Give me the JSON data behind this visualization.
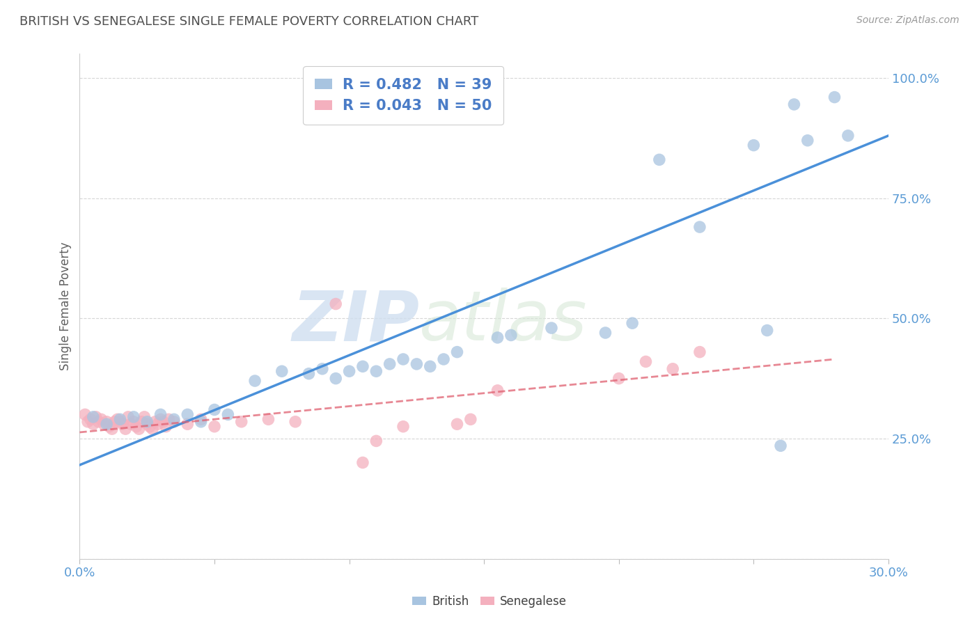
{
  "title": "BRITISH VS SENEGALESE SINGLE FEMALE POVERTY CORRELATION CHART",
  "source_text": "Source: ZipAtlas.com",
  "ylabel": "Single Female Poverty",
  "xlim": [
    0.0,
    0.3
  ],
  "ylim": [
    0.18,
    1.05
  ],
  "xticks": [
    0.0,
    0.05,
    0.1,
    0.15,
    0.2,
    0.25,
    0.3
  ],
  "xtick_labels": [
    "0.0%",
    "",
    "",
    "",
    "",
    "",
    "30.0%"
  ],
  "ytick_labels": [
    "",
    "25.0%",
    "50.0%",
    "75.0%",
    "100.0%"
  ],
  "yticks": [
    0.0,
    0.25,
    0.5,
    0.75,
    1.0
  ],
  "watermark_zip": "ZIP",
  "watermark_atlas": "atlas",
  "legend_british": "R = 0.482   N = 39",
  "legend_senegalese": "R = 0.043   N = 50",
  "british_color": "#a8c4e0",
  "senegalese_color": "#f4b0be",
  "british_line_color": "#4a90d9",
  "senegalese_line_color": "#e06070",
  "title_color": "#505050",
  "legend_text_color": "#4a7cc7",
  "british_scatter_x": [
    0.005,
    0.01,
    0.015,
    0.02,
    0.025,
    0.03,
    0.035,
    0.04,
    0.045,
    0.05,
    0.055,
    0.065,
    0.075,
    0.085,
    0.09,
    0.095,
    0.1,
    0.105,
    0.11,
    0.115,
    0.12,
    0.125,
    0.13,
    0.135,
    0.14,
    0.155,
    0.16,
    0.175,
    0.195,
    0.205,
    0.215,
    0.23,
    0.25,
    0.255,
    0.26,
    0.265,
    0.27,
    0.28,
    0.285
  ],
  "british_scatter_y": [
    0.295,
    0.28,
    0.29,
    0.295,
    0.285,
    0.3,
    0.29,
    0.3,
    0.285,
    0.31,
    0.3,
    0.37,
    0.39,
    0.385,
    0.395,
    0.375,
    0.39,
    0.4,
    0.39,
    0.405,
    0.415,
    0.405,
    0.4,
    0.415,
    0.43,
    0.46,
    0.465,
    0.48,
    0.47,
    0.49,
    0.83,
    0.69,
    0.86,
    0.475,
    0.235,
    0.945,
    0.87,
    0.96,
    0.88
  ],
  "senegalese_scatter_x": [
    0.002,
    0.003,
    0.004,
    0.005,
    0.006,
    0.007,
    0.008,
    0.009,
    0.01,
    0.011,
    0.012,
    0.013,
    0.014,
    0.015,
    0.016,
    0.017,
    0.018,
    0.019,
    0.02,
    0.021,
    0.022,
    0.023,
    0.024,
    0.025,
    0.026,
    0.027,
    0.028,
    0.029,
    0.03,
    0.031,
    0.032,
    0.033,
    0.035,
    0.04,
    0.045,
    0.05,
    0.06,
    0.07,
    0.08,
    0.095,
    0.105,
    0.11,
    0.12,
    0.14,
    0.145,
    0.155,
    0.2,
    0.21,
    0.22,
    0.23
  ],
  "senegalese_scatter_y": [
    0.3,
    0.285,
    0.29,
    0.28,
    0.295,
    0.285,
    0.29,
    0.28,
    0.285,
    0.275,
    0.27,
    0.285,
    0.29,
    0.285,
    0.28,
    0.27,
    0.295,
    0.28,
    0.285,
    0.275,
    0.27,
    0.285,
    0.295,
    0.28,
    0.275,
    0.27,
    0.285,
    0.28,
    0.29,
    0.285,
    0.275,
    0.29,
    0.285,
    0.28,
    0.29,
    0.275,
    0.285,
    0.29,
    0.285,
    0.53,
    0.2,
    0.245,
    0.275,
    0.28,
    0.29,
    0.35,
    0.375,
    0.41,
    0.395,
    0.43
  ],
  "british_line_x": [
    0.0,
    0.3
  ],
  "british_line_y": [
    0.195,
    0.88
  ],
  "senegalese_line_x": [
    0.0,
    0.28
  ],
  "senegalese_line_y": [
    0.263,
    0.415
  ]
}
